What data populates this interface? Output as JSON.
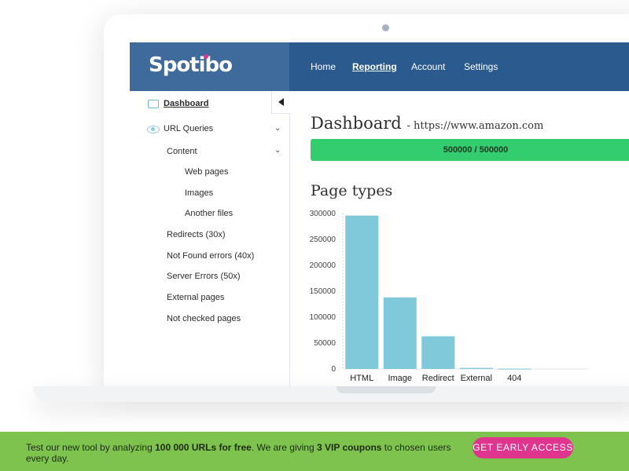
{
  "app": {
    "brand": "Spotibo",
    "nav": [
      {
        "label": "Home",
        "active": false
      },
      {
        "label": "Reporting",
        "active": true
      },
      {
        "label": "Account",
        "active": false
      },
      {
        "label": "Settings",
        "active": false
      }
    ]
  },
  "sidebar": {
    "items": [
      {
        "label": "Dashboard",
        "icon": "dashboard-icon",
        "active": true
      },
      {
        "label": "URL Queries",
        "icon": "eye-icon",
        "expandable": true
      },
      {
        "label": "Content",
        "expandable": true
      },
      {
        "label": "Web pages"
      },
      {
        "label": "Images"
      },
      {
        "label": "Another files"
      },
      {
        "label": "Redirects (30x)"
      },
      {
        "label": "Not Found errors (40x)"
      },
      {
        "label": "Server Errors (50x)"
      },
      {
        "label": "External pages"
      },
      {
        "label": "Not checked pages"
      }
    ]
  },
  "main": {
    "title": "Dashboard",
    "subtitle": "- https://www.amazon.com",
    "progress": {
      "text": "500000 / 500000",
      "fraction": 1.0,
      "color": "#33cc6e"
    },
    "section_title": "Page types"
  },
  "chart_data": {
    "type": "bar",
    "title": "Page types",
    "categories": [
      "HTML",
      "Image",
      "Redirect",
      "External",
      "404"
    ],
    "values": [
      296000,
      138000,
      63000,
      2000,
      500
    ],
    "ylim": [
      0,
      300000
    ],
    "yticks": [
      "0",
      "50000",
      "100000",
      "150000",
      "200000",
      "250000",
      "300000"
    ],
    "color": "#7fc9da",
    "grid": false
  },
  "banner": {
    "text_parts": [
      {
        "text": "Test our new tool by analyzing ",
        "bold": false
      },
      {
        "text": "100 000 URLs for free",
        "bold": true
      },
      {
        "text": ". We are giving ",
        "bold": false
      },
      {
        "text": "3 VIP coupons",
        "bold": true
      },
      {
        "text": " to chosen users every day.",
        "bold": false
      }
    ],
    "cta": "GET EARLY ACCESS",
    "bg_color": "#7ec34e",
    "cta_color": "#e0358f"
  }
}
